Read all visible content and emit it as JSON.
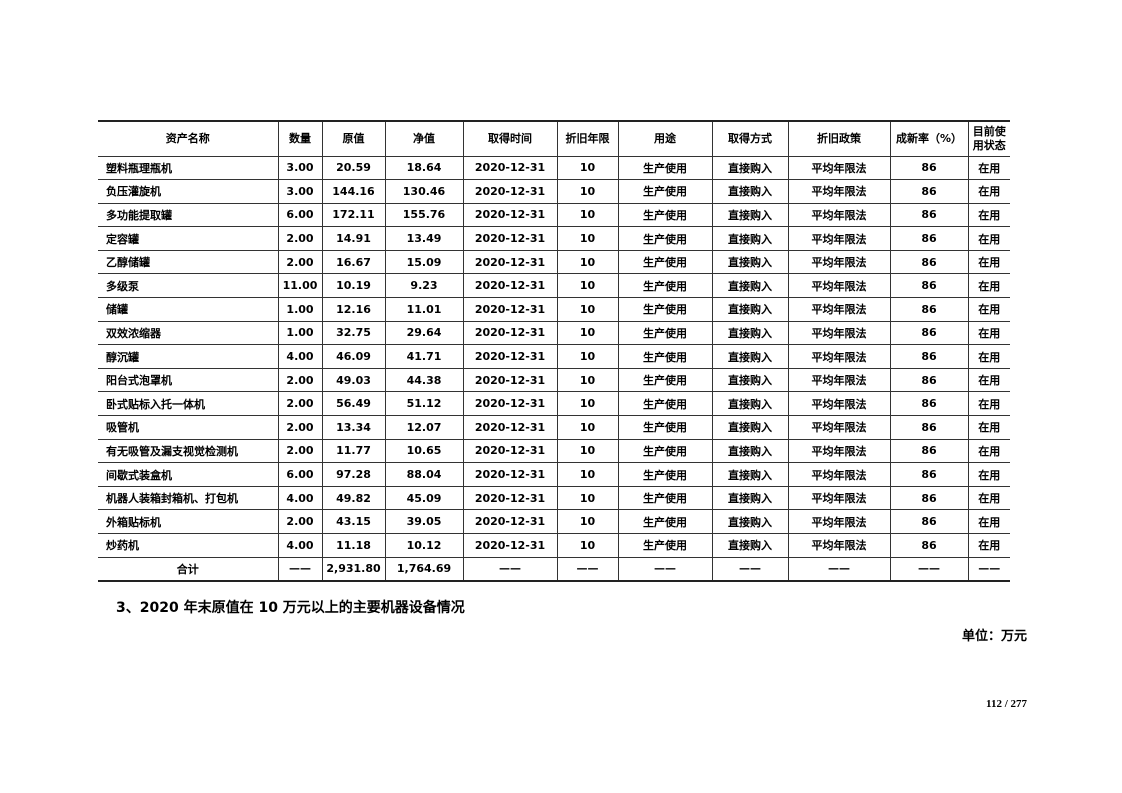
{
  "table": {
    "headers": [
      "资产名称",
      "数量",
      "原值",
      "净值",
      "取得时间",
      "折旧年限",
      "用途",
      "取得方式",
      "折旧政策",
      "成新率（%）",
      "目前使用状态"
    ],
    "rows": [
      [
        "塑料瓶理瓶机",
        "3.00",
        "20.59",
        "18.64",
        "2020-12-31",
        "10",
        "生产使用",
        "直接购入",
        "平均年限法",
        "86",
        "在用"
      ],
      [
        "负压灌旋机",
        "3.00",
        "144.16",
        "130.46",
        "2020-12-31",
        "10",
        "生产使用",
        "直接购入",
        "平均年限法",
        "86",
        "在用"
      ],
      [
        "多功能提取罐",
        "6.00",
        "172.11",
        "155.76",
        "2020-12-31",
        "10",
        "生产使用",
        "直接购入",
        "平均年限法",
        "86",
        "在用"
      ],
      [
        "定容罐",
        "2.00",
        "14.91",
        "13.49",
        "2020-12-31",
        "10",
        "生产使用",
        "直接购入",
        "平均年限法",
        "86",
        "在用"
      ],
      [
        "乙醇储罐",
        "2.00",
        "16.67",
        "15.09",
        "2020-12-31",
        "10",
        "生产使用",
        "直接购入",
        "平均年限法",
        "86",
        "在用"
      ],
      [
        "多级泵",
        "11.00",
        "10.19",
        "9.23",
        "2020-12-31",
        "10",
        "生产使用",
        "直接购入",
        "平均年限法",
        "86",
        "在用"
      ],
      [
        "储罐",
        "1.00",
        "12.16",
        "11.01",
        "2020-12-31",
        "10",
        "生产使用",
        "直接购入",
        "平均年限法",
        "86",
        "在用"
      ],
      [
        "双效浓缩器",
        "1.00",
        "32.75",
        "29.64",
        "2020-12-31",
        "10",
        "生产使用",
        "直接购入",
        "平均年限法",
        "86",
        "在用"
      ],
      [
        "醇沉罐",
        "4.00",
        "46.09",
        "41.71",
        "2020-12-31",
        "10",
        "生产使用",
        "直接购入",
        "平均年限法",
        "86",
        "在用"
      ],
      [
        "阳台式泡罩机",
        "2.00",
        "49.03",
        "44.38",
        "2020-12-31",
        "10",
        "生产使用",
        "直接购入",
        "平均年限法",
        "86",
        "在用"
      ],
      [
        "卧式贴标入托一体机",
        "2.00",
        "56.49",
        "51.12",
        "2020-12-31",
        "10",
        "生产使用",
        "直接购入",
        "平均年限法",
        "86",
        "在用"
      ],
      [
        "吸管机",
        "2.00",
        "13.34",
        "12.07",
        "2020-12-31",
        "10",
        "生产使用",
        "直接购入",
        "平均年限法",
        "86",
        "在用"
      ],
      [
        "有无吸管及漏支视觉检测机",
        "2.00",
        "11.77",
        "10.65",
        "2020-12-31",
        "10",
        "生产使用",
        "直接购入",
        "平均年限法",
        "86",
        "在用"
      ],
      [
        "间歇式装盒机",
        "6.00",
        "97.28",
        "88.04",
        "2020-12-31",
        "10",
        "生产使用",
        "直接购入",
        "平均年限法",
        "86",
        "在用"
      ],
      [
        "机器人装箱封箱机、打包机",
        "4.00",
        "49.82",
        "45.09",
        "2020-12-31",
        "10",
        "生产使用",
        "直接购入",
        "平均年限法",
        "86",
        "在用"
      ],
      [
        "外箱贴标机",
        "2.00",
        "43.15",
        "39.05",
        "2020-12-31",
        "10",
        "生产使用",
        "直接购入",
        "平均年限法",
        "86",
        "在用"
      ],
      [
        "炒药机",
        "4.00",
        "11.18",
        "10.12",
        "2020-12-31",
        "10",
        "生产使用",
        "直接购入",
        "平均年限法",
        "86",
        "在用"
      ]
    ],
    "total": [
      "合计",
      "——",
      "2,931.80",
      "1,764.69",
      "——",
      "——",
      "——",
      "——",
      "——",
      "——",
      "——"
    ]
  },
  "section_heading": "3、2020 年末原值在 10 万元以上的主要机器设备情况",
  "unit_label": "单位：万元",
  "page_number": "112 / 277"
}
